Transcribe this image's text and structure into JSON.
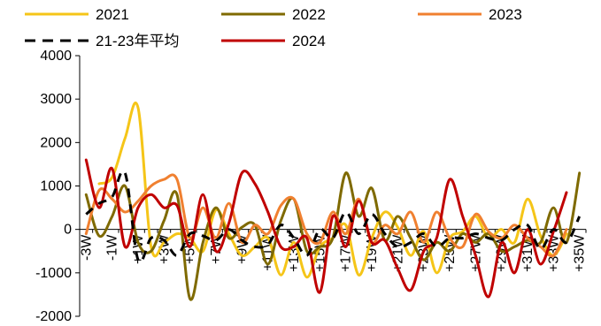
{
  "chart_data": {
    "type": "line",
    "ylim": [
      -2000,
      4000
    ],
    "yticks": [
      4000,
      3000,
      2000,
      1000,
      0,
      -1000,
      -2000
    ],
    "x": [
      "-3W",
      "-2W",
      "-1W",
      "+0W",
      "+1W",
      "+2W",
      "+3W",
      "+4W",
      "+5W",
      "+6W",
      "+7W",
      "+8W",
      "+9W",
      "+10W",
      "+11W",
      "+12W",
      "+13W",
      "+14W",
      "+15W",
      "+16W",
      "+17W",
      "+18W",
      "+19W",
      "+20W",
      "+21W",
      "+22W",
      "+23W",
      "+24W",
      "+25W",
      "+26W",
      "+27W",
      "+28W",
      "+29W",
      "+30W",
      "+31W",
      "+32W",
      "+33W",
      "+34W",
      "+35W"
    ],
    "xtick_labels": [
      "-3W",
      "-1W",
      "+1W",
      "+3W",
      "+5W",
      "+7W",
      "+9W",
      "+11W",
      "+13W",
      "+15W",
      "+17W",
      "+19W",
      "+21W",
      "+23W",
      "+25W",
      "+27W",
      "+29W",
      "+31W",
      "+33W",
      "+35W"
    ],
    "legend_position": "top",
    "grid": false,
    "series": [
      {
        "name": "2021",
        "color": "#F5C518",
        "dashed": false,
        "values": [
          null,
          1050,
          1200,
          2100,
          2800,
          -400,
          -300,
          -100,
          -200,
          -500,
          450,
          -100,
          -600,
          -400,
          -200,
          -1050,
          -300,
          -1100,
          -400,
          -200,
          100,
          -1050,
          -200,
          400,
          50,
          -600,
          -50,
          -1000,
          -200,
          -50,
          300,
          -200,
          0,
          -300,
          700,
          -150,
          -600,
          -100,
          null
        ]
      },
      {
        "name": "2022",
        "color": "#7F6A00",
        "dashed": false,
        "values": [
          800,
          -150,
          300,
          1000,
          -300,
          -500,
          200,
          800,
          -1600,
          -300,
          500,
          -200,
          50,
          100,
          -800,
          200,
          700,
          -500,
          -400,
          -200,
          1300,
          300,
          950,
          -250,
          300,
          -200,
          -700,
          -300,
          -500,
          -100,
          -300,
          -100,
          -500,
          -400,
          -250,
          -300,
          500,
          -300,
          1300
        ]
      },
      {
        "name": "2023",
        "color": "#F08030",
        "dashed": false,
        "values": [
          -100,
          900,
          700,
          400,
          650,
          1000,
          1150,
          1150,
          -200,
          500,
          -200,
          600,
          -300,
          100,
          -100,
          550,
          700,
          -100,
          -300,
          400,
          -100,
          700,
          -300,
          100,
          -100,
          400,
          -300,
          400,
          -200,
          -400,
          350,
          -50,
          -200,
          100,
          -200,
          -400,
          -600,
          0,
          null
        ]
      },
      {
        "name": "21-23年平均",
        "color": "#000000",
        "dashed": true,
        "values": [
          350,
          600,
          750,
          1300,
          -700,
          -200,
          -250,
          -600,
          -100,
          -150,
          -250,
          0,
          -250,
          -400,
          -350,
          100,
          -200,
          -600,
          0,
          -200,
          400,
          -100,
          350,
          -100,
          -400,
          -300,
          -100,
          -400,
          -200,
          -200,
          -100,
          -200,
          -250,
          0,
          100,
          -450,
          0,
          -300,
          300
        ]
      },
      {
        "name": "2024",
        "color": "#C00000",
        "dashed": false,
        "values": [
          1600,
          500,
          1400,
          -400,
          500,
          800,
          500,
          550,
          -400,
          800,
          -500,
          150,
          1300,
          1050,
          400,
          -400,
          -400,
          -200,
          -1450,
          300,
          -400,
          650,
          -300,
          -250,
          -900,
          -1400,
          -500,
          -200,
          1150,
          300,
          -600,
          -1550,
          -300,
          -1000,
          0,
          -800,
          -50,
          850,
          null
        ]
      }
    ]
  }
}
